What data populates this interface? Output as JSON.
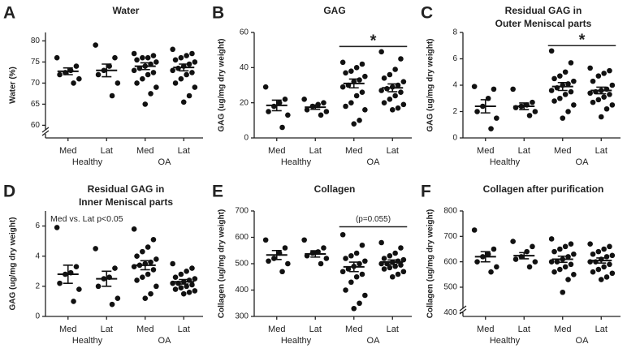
{
  "chart_data": [
    {
      "type": "strip",
      "panel": "A",
      "title": [
        "Water"
      ],
      "ylabel": "Water (%)",
      "categories": [
        "Med",
        "Lat",
        "Med",
        "Lat"
      ],
      "groups": [
        "Healthy",
        "OA"
      ],
      "values": [
        [
          76,
          74,
          73,
          72.5,
          72,
          71,
          70
        ],
        [
          79,
          76,
          74,
          73,
          72,
          70,
          67
        ],
        [
          77,
          76.5,
          76,
          76,
          75.5,
          75,
          74.5,
          74,
          73.5,
          73,
          72.5,
          72,
          71,
          70,
          69,
          67.5,
          65
        ],
        [
          78,
          77,
          76.5,
          76,
          75.5,
          75,
          74.5,
          74,
          73.5,
          73,
          72.5,
          72,
          71,
          70,
          69,
          67,
          65.5
        ]
      ],
      "means": [
        72.8,
        73,
        74,
        73.7
      ],
      "sems": [
        0.8,
        1.5,
        0.8,
        0.8
      ],
      "ylim": [
        57,
        82
      ],
      "yticks": [
        60,
        65,
        70,
        75,
        80
      ],
      "axis_break": true,
      "color": "#111111"
    },
    {
      "type": "strip",
      "panel": "B",
      "title": [
        "GAG"
      ],
      "ylabel": "GAG (ug/mg dry weight)",
      "categories": [
        "Med",
        "Lat",
        "Med",
        "Lat"
      ],
      "groups": [
        "Healthy",
        "OA"
      ],
      "values": [
        [
          29,
          22,
          20,
          18,
          15,
          13,
          6
        ],
        [
          22,
          20,
          19,
          18,
          16,
          15,
          13
        ],
        [
          43,
          42,
          40,
          38,
          37,
          35,
          33,
          32,
          30,
          29,
          26,
          24,
          20,
          18,
          16,
          10,
          8
        ],
        [
          49,
          45,
          39,
          36,
          34,
          32,
          30,
          29,
          28,
          27,
          26,
          24,
          22,
          20,
          19,
          17,
          16
        ]
      ],
      "means": [
        18.5,
        17.5,
        31,
        28.5
      ],
      "sems": [
        3,
        1.2,
        2.5,
        2.2
      ],
      "ylim": [
        0,
        60
      ],
      "yticks": [
        0,
        20,
        40,
        60
      ],
      "axis_break": false,
      "color": "#111111",
      "annotations": [
        {
          "text": "*",
          "span": [
            2,
            3
          ],
          "y": 52
        }
      ]
    },
    {
      "type": "strip",
      "panel": "C",
      "title": [
        "Residual GAG in",
        "Outer Meniscal parts"
      ],
      "ylabel": "GAG (ug/mg dry weight)",
      "categories": [
        "Med",
        "Lat",
        "Med",
        "Lat"
      ],
      "groups": [
        "Healthy",
        "OA"
      ],
      "values": [
        [
          3.9,
          3.7,
          3.0,
          2.4,
          2.0,
          1.5,
          0.7
        ],
        [
          3.7,
          2.7,
          2.5,
          2.4,
          2.3,
          2.0,
          1.7
        ],
        [
          6.6,
          5.7,
          5.0,
          4.7,
          4.5,
          4.3,
          4.1,
          4.0,
          3.8,
          3.6,
          3.5,
          3.3,
          3.0,
          2.8,
          2.5,
          2.0,
          1.5
        ],
        [
          5.3,
          5.1,
          4.9,
          4.7,
          4.3,
          4.0,
          3.7,
          3.6,
          3.5,
          3.4,
          3.3,
          3.1,
          2.9,
          2.7,
          2.5,
          2.2,
          1.6
        ]
      ],
      "means": [
        2.4,
        2.4,
        3.9,
        3.6
      ],
      "sems": [
        0.5,
        0.25,
        0.3,
        0.25
      ],
      "ylim": [
        0,
        8
      ],
      "yticks": [
        0,
        2,
        4,
        6,
        8
      ],
      "axis_break": false,
      "color": "#111111",
      "annotations": [
        {
          "text": "*",
          "span": [
            2,
            3
          ],
          "y": 7
        }
      ]
    },
    {
      "type": "strip",
      "panel": "D",
      "title": [
        "Residual GAG in",
        "Inner Meniscal parts"
      ],
      "ylabel": "GAG (ug/mg dry weight)",
      "categories": [
        "Med",
        "Lat",
        "Med",
        "Lat"
      ],
      "groups": [
        "Healthy",
        "OA"
      ],
      "values": [
        [
          5.9,
          3.3,
          2.9,
          2.8,
          2.2,
          1.8,
          1.0
        ],
        [
          4.5,
          3.2,
          2.6,
          2.5,
          2.0,
          1.2,
          0.8
        ],
        [
          5.8,
          5.1,
          4.6,
          4.3,
          4.0,
          3.8,
          3.6,
          3.5,
          3.4,
          3.3,
          3.1,
          2.8,
          2.6,
          2.4,
          2.0,
          1.5,
          1.2
        ],
        [
          3.5,
          3.2,
          3.0,
          2.8,
          2.6,
          2.5,
          2.4,
          2.3,
          2.2,
          2.2,
          2.1,
          2.0,
          1.9,
          1.8,
          1.7,
          1.6,
          1.5
        ]
      ],
      "means": [
        2.8,
        2.5,
        3.4,
        2.3
      ],
      "sems": [
        0.6,
        0.5,
        0.3,
        0.15
      ],
      "ylim": [
        0,
        7
      ],
      "yticks": [
        0,
        2,
        4,
        6
      ],
      "axis_break": false,
      "color": "#111111",
      "annotations": [
        {
          "text": "Med vs. Lat p<0.05"
        }
      ]
    },
    {
      "type": "strip",
      "panel": "E",
      "title": [
        "Collagen"
      ],
      "ylabel": "Collagen (ug/mg dry weight)",
      "categories": [
        "Med",
        "Lat",
        "Med",
        "Lat"
      ],
      "groups": [
        "Healthy",
        "OA"
      ],
      "values": [
        [
          590,
          560,
          540,
          520,
          510,
          500,
          470
        ],
        [
          590,
          560,
          545,
          540,
          530,
          520,
          500
        ],
        [
          610,
          570,
          540,
          530,
          520,
          510,
          500,
          490,
          480,
          470,
          460,
          450,
          430,
          400,
          380,
          350,
          330
        ],
        [
          580,
          560,
          540,
          530,
          520,
          515,
          510,
          505,
          500,
          500,
          495,
          490,
          485,
          480,
          470,
          460,
          450
        ]
      ],
      "means": [
        533,
        537,
        488,
        506
      ],
      "sems": [
        17,
        12,
        18,
        8
      ],
      "ylim": [
        300,
        700
      ],
      "yticks": [
        300,
        400,
        500,
        600,
        700
      ],
      "axis_break": false,
      "color": "#111111",
      "annotations": [
        {
          "text": "(p=0.055)",
          "span": [
            2,
            3
          ],
          "y": 640
        }
      ]
    },
    {
      "type": "strip",
      "panel": "F",
      "title": [
        "Collagen after purification"
      ],
      "ylabel": "Collagen (ug/mg dry weight)",
      "categories": [
        "Med",
        "Lat",
        "Med",
        "Lat"
      ],
      "groups": [
        "Healthy",
        "OA"
      ],
      "values": [
        [
          725,
          650,
          630,
          620,
          600,
          580,
          560
        ],
        [
          680,
          660,
          640,
          620,
          610,
          600,
          580
        ],
        [
          690,
          670,
          660,
          650,
          640,
          630,
          620,
          610,
          600,
          600,
          590,
          580,
          570,
          560,
          550,
          530,
          480
        ],
        [
          670,
          660,
          650,
          640,
          630,
          625,
          620,
          610,
          600,
          600,
          590,
          580,
          570,
          560,
          555,
          540,
          530
        ]
      ],
      "means": [
        620,
        624,
        610,
        605
      ],
      "sems": [
        20,
        12,
        12,
        10
      ],
      "ylim": [
        385,
        800
      ],
      "yticks": [
        400,
        500,
        600,
        700,
        800
      ],
      "axis_break": true,
      "color": "#111111"
    }
  ]
}
